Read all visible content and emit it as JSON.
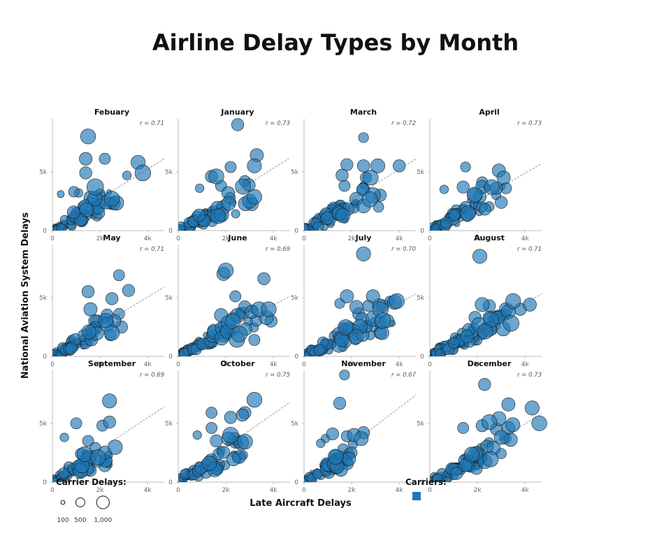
{
  "title": "Airline Delay Types by Month",
  "chart_data": {
    "type": "scatter",
    "title": "Airline Delay Types by Month",
    "xlabel": "Late Aircraft Delays",
    "ylabel": "National Aviation System Delays",
    "xlim": [
      0,
      4700
    ],
    "ylim": [
      0,
      9500
    ],
    "x_ticks": [
      {
        "value": 0,
        "label": "0"
      },
      {
        "value": 2000,
        "label": "2k"
      },
      {
        "value": 4000,
        "label": "4k"
      }
    ],
    "y_ticks": [
      {
        "value": 0,
        "label": "0"
      },
      {
        "value": 5000,
        "label": "5k"
      }
    ],
    "size_legend": {
      "title": "Carrier Delays:",
      "values": [
        100,
        500,
        1000
      ],
      "labels": [
        "100",
        "500",
        "1,000"
      ]
    },
    "color_legend": {
      "title": "Carriers:",
      "color": "#1f77b4"
    },
    "colors": {
      "point_fill": "#1f77b4",
      "point_stroke": "#1a1a1a",
      "trend": "#999999",
      "axis": "#bbbbbb"
    },
    "panels": [
      {
        "month": "Febuary",
        "r": "r = 0.71",
        "trend": [
          [
            0,
            200
          ],
          [
            4700,
            6100
          ]
        ],
        "points": [
          [
            1500,
            8000,
            900
          ],
          [
            1400,
            6100,
            650
          ],
          [
            2200,
            6100,
            500
          ],
          [
            1400,
            4900,
            600
          ],
          [
            1800,
            3700,
            1100
          ],
          [
            3600,
            5800,
            800
          ],
          [
            3800,
            4900,
            1000
          ],
          [
            350,
            3100,
            200
          ],
          [
            900,
            3300,
            450
          ],
          [
            2500,
            2700,
            900
          ],
          [
            1600,
            2800,
            700
          ],
          [
            1100,
            3200,
            300
          ],
          [
            2000,
            3100,
            450
          ]
        ],
        "cluster": {
          "n": 70,
          "xmax": 2500,
          "ymax": 3000,
          "smin": 80,
          "smax": 800,
          "seed": 11
        }
      },
      {
        "month": "January",
        "r": "r = 0.73",
        "trend": [
          [
            0,
            150
          ],
          [
            4700,
            6200
          ]
        ],
        "points": [
          [
            2500,
            9000,
            600
          ],
          [
            3300,
            6400,
            700
          ],
          [
            3200,
            5500,
            800
          ],
          [
            2200,
            5400,
            500
          ],
          [
            1400,
            4600,
            600
          ],
          [
            1600,
            4600,
            900
          ],
          [
            2800,
            4200,
            500
          ],
          [
            3000,
            2500,
            800
          ],
          [
            1800,
            3800,
            500
          ],
          [
            900,
            3600,
            300
          ],
          [
            2100,
            3200,
            650
          ]
        ],
        "cluster": {
          "n": 75,
          "xmax": 2800,
          "ymax": 3200,
          "smin": 80,
          "smax": 800,
          "seed": 23
        }
      },
      {
        "month": "March",
        "r": "r = 0.72",
        "trend": [
          [
            0,
            150
          ],
          [
            4700,
            6100
          ]
        ],
        "points": [
          [
            2500,
            7900,
            400
          ],
          [
            1800,
            5600,
            600
          ],
          [
            2500,
            5500,
            600
          ],
          [
            3100,
            5500,
            800
          ],
          [
            4000,
            5500,
            600
          ],
          [
            1600,
            4700,
            600
          ],
          [
            2800,
            4500,
            900
          ],
          [
            3200,
            3000,
            600
          ],
          [
            2500,
            3500,
            600
          ],
          [
            2600,
            4500,
            500
          ],
          [
            1700,
            3800,
            500
          ],
          [
            2200,
            2700,
            700
          ]
        ],
        "cluster": {
          "n": 75,
          "xmax": 2600,
          "ymax": 3100,
          "smin": 80,
          "smax": 800,
          "seed": 37
        }
      },
      {
        "month": "April",
        "r": "r = 0.73",
        "trend": [
          [
            0,
            150
          ],
          [
            4700,
            5700
          ]
        ],
        "points": [
          [
            1500,
            5400,
            400
          ],
          [
            2900,
            5100,
            700
          ],
          [
            3100,
            4500,
            700
          ],
          [
            2200,
            4100,
            500
          ],
          [
            2200,
            3700,
            700
          ],
          [
            2600,
            3700,
            900
          ],
          [
            2800,
            3600,
            600
          ],
          [
            3200,
            3600,
            500
          ],
          [
            1400,
            3700,
            600
          ],
          [
            600,
            3500,
            300
          ],
          [
            3000,
            2400,
            600
          ],
          [
            1900,
            3000,
            800
          ]
        ],
        "cluster": {
          "n": 70,
          "xmax": 2500,
          "ymax": 3000,
          "smin": 80,
          "smax": 750,
          "seed": 41
        }
      },
      {
        "month": "May",
        "r": "r = 0.71",
        "trend": [
          [
            0,
            150
          ],
          [
            4700,
            5900
          ]
        ],
        "points": [
          [
            2800,
            6900,
            500
          ],
          [
            3200,
            5600,
            600
          ],
          [
            1500,
            5500,
            600
          ],
          [
            2500,
            4900,
            600
          ],
          [
            1600,
            4000,
            700
          ],
          [
            2300,
            3500,
            600
          ],
          [
            2600,
            3000,
            700
          ],
          [
            2500,
            2000,
            900
          ],
          [
            2900,
            2500,
            600
          ],
          [
            2800,
            3600,
            500
          ],
          [
            1800,
            2400,
            700
          ]
        ],
        "cluster": {
          "n": 70,
          "xmax": 2500,
          "ymax": 3000,
          "smin": 80,
          "smax": 800,
          "seed": 53
        }
      },
      {
        "month": "June",
        "r": "r = 0.69",
        "trend": [
          [
            0,
            150
          ],
          [
            4700,
            5100
          ]
        ],
        "points": [
          [
            2000,
            7300,
            900
          ],
          [
            1900,
            7000,
            700
          ],
          [
            3600,
            6600,
            600
          ],
          [
            2400,
            5100,
            500
          ],
          [
            3700,
            3300,
            800
          ],
          [
            3900,
            3000,
            600
          ],
          [
            3400,
            4000,
            900
          ],
          [
            2500,
            3500,
            800
          ],
          [
            3100,
            3800,
            700
          ],
          [
            3200,
            1400,
            500
          ],
          [
            2800,
            4200,
            600
          ],
          [
            1800,
            3500,
            700
          ],
          [
            3800,
            4000,
            900
          ]
        ],
        "cluster": {
          "n": 80,
          "xmax": 3100,
          "ymax": 3500,
          "smin": 80,
          "smax": 850,
          "seed": 61
        }
      },
      {
        "month": "July",
        "r": "r = 0.70",
        "trend": [
          [
            0,
            150
          ],
          [
            4700,
            5300
          ]
        ],
        "points": [
          [
            2500,
            8700,
            800
          ],
          [
            1800,
            5100,
            700
          ],
          [
            2900,
            5100,
            700
          ],
          [
            3900,
            4700,
            900
          ],
          [
            3800,
            4600,
            800
          ],
          [
            2200,
            4200,
            700
          ],
          [
            3300,
            4300,
            600
          ],
          [
            2700,
            4300,
            500
          ],
          [
            2900,
            3200,
            900
          ],
          [
            2600,
            2500,
            600
          ],
          [
            3500,
            3000,
            700
          ],
          [
            3200,
            2000,
            600
          ],
          [
            2300,
            3600,
            600
          ],
          [
            1500,
            4500,
            400
          ]
        ],
        "cluster": {
          "n": 80,
          "xmax": 3200,
          "ymax": 3600,
          "smin": 80,
          "smax": 850,
          "seed": 73
        }
      },
      {
        "month": "August",
        "r": "r = 0.71",
        "trend": [
          [
            0,
            150
          ],
          [
            4700,
            5300
          ]
        ],
        "points": [
          [
            2100,
            8500,
            800
          ],
          [
            3500,
            4700,
            900
          ],
          [
            4200,
            4400,
            700
          ],
          [
            2200,
            4400,
            800
          ],
          [
            2500,
            4300,
            600
          ],
          [
            3200,
            4000,
            700
          ],
          [
            3800,
            4000,
            600
          ],
          [
            2900,
            3300,
            700
          ],
          [
            2700,
            2700,
            600
          ],
          [
            3000,
            3500,
            500
          ],
          [
            1900,
            3300,
            600
          ],
          [
            3300,
            3800,
            800
          ]
        ],
        "cluster": {
          "n": 80,
          "xmax": 3000,
          "ymax": 3500,
          "smin": 80,
          "smax": 850,
          "seed": 89
        }
      },
      {
        "month": "September",
        "r": "r = 0.69",
        "trend": [
          [
            0,
            150
          ],
          [
            4700,
            6400
          ]
        ],
        "points": [
          [
            2400,
            6900,
            800
          ],
          [
            2400,
            5100,
            600
          ],
          [
            1000,
            5000,
            500
          ],
          [
            2100,
            4800,
            500
          ],
          [
            1500,
            3500,
            500
          ],
          [
            2200,
            2500,
            700
          ],
          [
            2200,
            1400,
            600
          ],
          [
            500,
            3800,
            300
          ],
          [
            1800,
            2900,
            500
          ],
          [
            1900,
            1800,
            600
          ],
          [
            1200,
            2400,
            500
          ]
        ],
        "cluster": {
          "n": 60,
          "xmax": 2100,
          "ymax": 2600,
          "smin": 80,
          "smax": 750,
          "seed": 97
        }
      },
      {
        "month": "October",
        "r": "r = 0.75",
        "trend": [
          [
            0,
            150
          ],
          [
            4700,
            6800
          ]
        ],
        "points": [
          [
            3200,
            7000,
            900
          ],
          [
            2800,
            5900,
            600
          ],
          [
            2700,
            5700,
            600
          ],
          [
            1400,
            5900,
            500
          ],
          [
            2200,
            5500,
            600
          ],
          [
            1400,
            4600,
            500
          ],
          [
            2200,
            4000,
            1000
          ],
          [
            2100,
            3700,
            700
          ],
          [
            2400,
            3400,
            600
          ],
          [
            800,
            4000,
            300
          ],
          [
            1600,
            3500,
            600
          ],
          [
            2500,
            2100,
            500
          ]
        ],
        "cluster": {
          "n": 70,
          "xmax": 2500,
          "ymax": 3000,
          "smin": 80,
          "smax": 800,
          "seed": 103
        }
      },
      {
        "month": "November",
        "r": "r = 0.67",
        "trend": [
          [
            0,
            150
          ],
          [
            4700,
            7400
          ]
        ],
        "points": [
          [
            1700,
            9100,
            400
          ],
          [
            1500,
            6700,
            600
          ],
          [
            1200,
            4100,
            600
          ],
          [
            1800,
            3900,
            500
          ],
          [
            2100,
            4000,
            700
          ],
          [
            2500,
            4200,
            600
          ],
          [
            2400,
            3700,
            800
          ],
          [
            900,
            3700,
            300
          ],
          [
            2000,
            2500,
            500
          ],
          [
            1800,
            1800,
            500
          ],
          [
            1300,
            2300,
            500
          ],
          [
            700,
            3300,
            300
          ]
        ],
        "cluster": {
          "n": 70,
          "xmax": 2000,
          "ymax": 2600,
          "smin": 80,
          "smax": 750,
          "seed": 113
        }
      },
      {
        "month": "December",
        "r": "r = 0.73",
        "trend": [
          [
            0,
            150
          ],
          [
            4700,
            5800
          ]
        ],
        "points": [
          [
            2300,
            8300,
            600
          ],
          [
            4300,
            6300,
            800
          ],
          [
            4600,
            5000,
            900
          ],
          [
            3300,
            6600,
            700
          ],
          [
            2900,
            5400,
            800
          ],
          [
            2500,
            5100,
            900
          ],
          [
            3300,
            4600,
            700
          ],
          [
            2800,
            4500,
            600
          ],
          [
            3000,
            3800,
            800
          ],
          [
            3400,
            3600,
            700
          ],
          [
            2400,
            3000,
            700
          ],
          [
            2000,
            2500,
            700
          ],
          [
            2200,
            4800,
            600
          ],
          [
            1400,
            4600,
            500
          ]
        ],
        "cluster": {
          "n": 75,
          "xmax": 3000,
          "ymax": 3300,
          "smin": 80,
          "smax": 850,
          "seed": 127
        }
      }
    ]
  }
}
